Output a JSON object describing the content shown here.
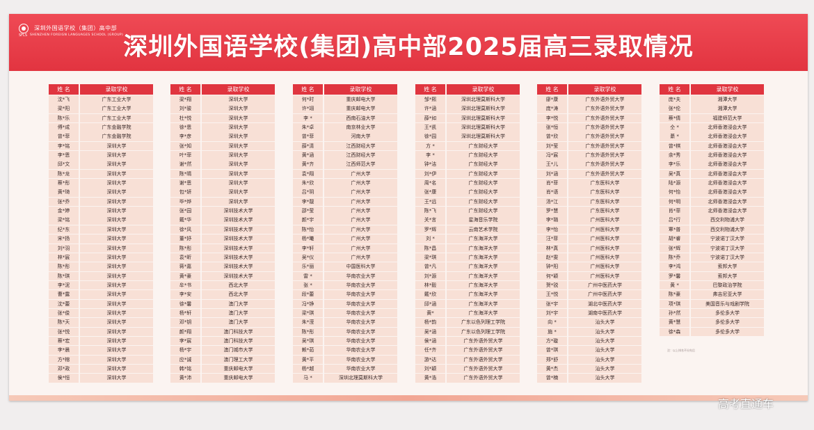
{
  "header": {
    "logo_text": "深圳外国语学校（集团）高中部",
    "logo_short": "SFLS",
    "logo_en": "SHENZHEN FOREIGN LANGUAGES SCHOOL (GROUP)",
    "title": "深圳外国语学校(集团)高中部2025届高三录取情况"
  },
  "columns": [
    {
      "header_name": "姓 名",
      "header_school": "录取学校",
      "rows": [
        {
          "name": "沈*飞",
          "school": "广东工业大学"
        },
        {
          "name": "梁*阳",
          "school": "广东工业大学"
        },
        {
          "name": "陈*乐",
          "school": "广东工业大学"
        },
        {
          "name": "傅*成",
          "school": "广东金融学院"
        },
        {
          "name": "曾*菲",
          "school": "广东金融学院"
        },
        {
          "name": "李*铭",
          "school": "深圳大学"
        },
        {
          "name": "李*恩",
          "school": "深圳大学"
        },
        {
          "name": "邱*文",
          "school": "深圳大学"
        },
        {
          "name": "陈*龙",
          "school": "深圳大学"
        },
        {
          "name": "蔡*彤",
          "school": "深圳大学"
        },
        {
          "name": "黄*琦",
          "school": "深圳大学"
        },
        {
          "name": "张*乔",
          "school": "深圳大学"
        },
        {
          "name": "金*婷",
          "school": "深圳大学"
        },
        {
          "name": "梁*铭",
          "school": "深圳大学"
        },
        {
          "name": "纪*东",
          "school": "深圳大学"
        },
        {
          "name": "宋*扬",
          "school": "深圳大学"
        },
        {
          "name": "刘*羽",
          "school": "深圳大学"
        },
        {
          "name": "林*宸",
          "school": "深圳大学"
        },
        {
          "name": "陈*彤",
          "school": "深圳大学"
        },
        {
          "name": "陈*琪",
          "school": "深圳大学"
        },
        {
          "name": "李*泥",
          "school": "深圳大学"
        },
        {
          "name": "曹*露",
          "school": "深圳大学"
        },
        {
          "name": "沈*蕾",
          "school": "深圳大学"
        },
        {
          "name": "张*俊",
          "school": "深圳大学"
        },
        {
          "name": "陈*天",
          "school": "深圳大学"
        },
        {
          "name": "张*悦",
          "school": "深圳大学"
        },
        {
          "name": "蔡*宏",
          "school": "深圳大学"
        },
        {
          "name": "李*晨",
          "school": "深圳大学"
        },
        {
          "name": "方*榕",
          "school": "深圳大学"
        },
        {
          "name": "邓*政",
          "school": "深圳大学"
        },
        {
          "name": "侯*恒",
          "school": "深圳大学"
        }
      ]
    },
    {
      "header_name": "姓 名",
      "header_school": "录取学校",
      "rows": [
        {
          "name": "梁*翔",
          "school": "深圳大学"
        },
        {
          "name": "刘*骏",
          "school": "深圳大学"
        },
        {
          "name": "杜*悦",
          "school": "深圳大学"
        },
        {
          "name": "徐*恩",
          "school": "深圳大学"
        },
        {
          "name": "李*彦",
          "school": "深圳大学"
        },
        {
          "name": "张*知",
          "school": "深圳大学"
        },
        {
          "name": "叶*菲",
          "school": "深圳大学"
        },
        {
          "name": "谢*然",
          "school": "深圳大学"
        },
        {
          "name": "陈*晴",
          "school": "深圳大学"
        },
        {
          "name": "谢*恩",
          "school": "深圳大学"
        },
        {
          "name": "包*妍",
          "school": "深圳大学"
        },
        {
          "name": "毕*烨",
          "school": "深圳大学"
        },
        {
          "name": "张*园",
          "school": "深圳技术大学"
        },
        {
          "name": "戴*华",
          "school": "深圳技术大学"
        },
        {
          "name": "徐*风",
          "school": "深圳技术大学"
        },
        {
          "name": "董*妤",
          "school": "深圳技术大学"
        },
        {
          "name": "陈*彤",
          "school": "深圳技术大学"
        },
        {
          "name": "袁*昕",
          "school": "深圳技术大学"
        },
        {
          "name": "蒋*嘉",
          "school": "深圳技术大学"
        },
        {
          "name": "黄*豪",
          "school": "深圳技术大学"
        },
        {
          "name": "牟*书",
          "school": "西北大学"
        },
        {
          "name": "李*安",
          "school": "西北大学"
        },
        {
          "name": "徐*馨",
          "school": "澳门大学"
        },
        {
          "name": "杨*轩",
          "school": "澳门大学"
        },
        {
          "name": "邓*钥",
          "school": "澳门大学"
        },
        {
          "name": "颜*翔",
          "school": "澳门科技大学"
        },
        {
          "name": "李*宸",
          "school": "澳门科技大学"
        },
        {
          "name": "杨*宇",
          "school": "澳门城市大学"
        },
        {
          "name": "应*诚",
          "school": "澳门理工大学"
        },
        {
          "name": "韩*铭",
          "school": "重庆邮电大学"
        },
        {
          "name": "黄*沛",
          "school": "重庆邮电大学"
        }
      ]
    },
    {
      "header_name": "姓 名",
      "header_school": "录取学校",
      "rows": [
        {
          "name": "何*时",
          "school": "重庆邮电大学"
        },
        {
          "name": "许*翊",
          "school": "重庆邮电大学"
        },
        {
          "name": "李 *",
          "school": "西南石油大学"
        },
        {
          "name": "朱*卓",
          "school": "南京林业大学"
        },
        {
          "name": "曾*菲",
          "school": "河南大学"
        },
        {
          "name": "薛*清",
          "school": "江西财经大学"
        },
        {
          "name": "黄*涵",
          "school": "江西财经大学"
        },
        {
          "name": "黄*齐",
          "school": "江西师范大学"
        },
        {
          "name": "袁*翔",
          "school": "广州大学"
        },
        {
          "name": "朱*欣",
          "school": "广州大学"
        },
        {
          "name": "吕*玥",
          "school": "广州大学"
        },
        {
          "name": "李*靓",
          "school": "广州大学"
        },
        {
          "name": "邵*莹",
          "school": "广州大学"
        },
        {
          "name": "颜*宇",
          "school": "广州大学"
        },
        {
          "name": "陈*怡",
          "school": "广州大学"
        },
        {
          "name": "杨*曦",
          "school": "广州大学"
        },
        {
          "name": "李*轩",
          "school": "广州大学"
        },
        {
          "name": "吴*仪",
          "school": "广州大学"
        },
        {
          "name": "乐*丽",
          "school": "中国医科大学"
        },
        {
          "name": "雷 *",
          "school": "华南农业大学"
        },
        {
          "name": "张 *",
          "school": "华南农业大学"
        },
        {
          "name": "段*蕾",
          "school": "华南农业大学"
        },
        {
          "name": "冯*铮",
          "school": "华南农业大学"
        },
        {
          "name": "梁*琪",
          "school": "华南农业大学"
        },
        {
          "name": "朱*滢",
          "school": "华南农业大学"
        },
        {
          "name": "陈*彤",
          "school": "华南农业大学"
        },
        {
          "name": "吴*琪",
          "school": "华南农业大学"
        },
        {
          "name": "赖*茹",
          "school": "华南农业大学"
        },
        {
          "name": "黄*平",
          "school": "华南农业大学"
        },
        {
          "name": "杨*越",
          "school": "华南农业大学"
        },
        {
          "name": "马 *",
          "school": "深圳北理莫斯科大学"
        }
      ]
    },
    {
      "header_name": "姓 名",
      "header_school": "录取学校",
      "rows": [
        {
          "name": "邹*熙",
          "school": "深圳北理莫斯科大学"
        },
        {
          "name": "许*涵",
          "school": "深圳北理莫斯科大学"
        },
        {
          "name": "薛*如",
          "school": "深圳北理莫斯科大学"
        },
        {
          "name": "王*凯",
          "school": "深圳北理莫斯科大学"
        },
        {
          "name": "徐*园",
          "school": "深圳北理莫斯科大学"
        },
        {
          "name": "方 *",
          "school": "广东财经大学"
        },
        {
          "name": "李 *",
          "school": "广东财经大学"
        },
        {
          "name": "钟*洁",
          "school": "广东财经大学"
        },
        {
          "name": "刘*伊",
          "school": "广东财经大学"
        },
        {
          "name": "周*名",
          "school": "广东财经大学"
        },
        {
          "name": "张*康",
          "school": "广东财经大学"
        },
        {
          "name": "王*远",
          "school": "广东财经大学"
        },
        {
          "name": "陈*飞",
          "school": "广东财经大学"
        },
        {
          "name": "关*言",
          "school": "星海音乐学院"
        },
        {
          "name": "罗*辉",
          "school": "云南艺术学院"
        },
        {
          "name": "刘 *",
          "school": "广东海洋大学"
        },
        {
          "name": "陈*昌",
          "school": "广东海洋大学"
        },
        {
          "name": "梁*琪",
          "school": "广东海洋大学"
        },
        {
          "name": "曾*凡",
          "school": "广东海洋大学"
        },
        {
          "name": "刘*源",
          "school": "广东海洋大学"
        },
        {
          "name": "林*毅",
          "school": "广东海洋大学"
        },
        {
          "name": "戴*欣",
          "school": "广东海洋大学"
        },
        {
          "name": "邱*涵",
          "school": "广东海洋大学"
        },
        {
          "name": "黄*",
          "school": "广东海洋大学"
        },
        {
          "name": "杨*韵",
          "school": "广东以色列理工学院"
        },
        {
          "name": "吴*涵",
          "school": "广东以色列理工学院"
        },
        {
          "name": "侯*涵",
          "school": "广东外语外贸大学"
        },
        {
          "name": "任*齐",
          "school": "广东外语外贸大学"
        },
        {
          "name": "游*达",
          "school": "广东外语外贸大学"
        },
        {
          "name": "刘*颖",
          "school": "广东外语外贸大学"
        },
        {
          "name": "黄*浩",
          "school": "广东外语外贸大学"
        }
      ]
    },
    {
      "header_name": "姓 名",
      "header_school": "录取学校",
      "rows": [
        {
          "name": "廖*康",
          "school": "广东外语外贸大学"
        },
        {
          "name": "庞*涛",
          "school": "广东外语外贸大学"
        },
        {
          "name": "李*悦",
          "school": "广东外语外贸大学"
        },
        {
          "name": "张*恒",
          "school": "广东外语外贸大学"
        },
        {
          "name": "曾*欣",
          "school": "广东外语外贸大学"
        },
        {
          "name": "刘*莹",
          "school": "广东外语外贸大学"
        },
        {
          "name": "冯*宸",
          "school": "广东外语外贸大学"
        },
        {
          "name": "王*儿",
          "school": "广东外语外贸大学"
        },
        {
          "name": "刘*涵",
          "school": "广东外语外贸大学"
        },
        {
          "name": "肖*菲",
          "school": "广东医科大学"
        },
        {
          "name": "肖*语",
          "school": "广东医科大学"
        },
        {
          "name": "汤*江",
          "school": "广东医科大学"
        },
        {
          "name": "罗*慧",
          "school": "广东医科大学"
        },
        {
          "name": "李*璐",
          "school": "广州医科大学"
        },
        {
          "name": "李*怡",
          "school": "广州医科大学"
        },
        {
          "name": "汪*菲",
          "school": "广州医科大学"
        },
        {
          "name": "林*真",
          "school": "广州医科大学"
        },
        {
          "name": "赵*雯",
          "school": "广州医科大学"
        },
        {
          "name": "钟*阳",
          "school": "广州医科大学"
        },
        {
          "name": "何*颖",
          "school": "广州医科大学"
        },
        {
          "name": "贺*锐",
          "school": "广州中医药大学"
        },
        {
          "name": "王*悦",
          "school": "广州中医药大学"
        },
        {
          "name": "张*宇",
          "school": "湖北中医药大学"
        },
        {
          "name": "刘*宇",
          "school": "湖南中医药大学"
        },
        {
          "name": "向 *",
          "school": "汕头大学"
        },
        {
          "name": "施 *",
          "school": "汕头大学"
        },
        {
          "name": "方*璇",
          "school": "汕头大学"
        },
        {
          "name": "曾*琪",
          "school": "汕头大学"
        },
        {
          "name": "郑*舒",
          "school": "汕头大学"
        },
        {
          "name": "黄*杰",
          "school": "汕头大学"
        },
        {
          "name": "曾*楠",
          "school": "汕头大学"
        }
      ]
    },
    {
      "header_name": "姓 名",
      "header_school": "录取学校",
      "rows": [
        {
          "name": "庞*夫",
          "school": "湘潭大学"
        },
        {
          "name": "张*伦",
          "school": "湘潭大学"
        },
        {
          "name": "蔡*倩",
          "school": "福建师范大学"
        },
        {
          "name": "仝 *",
          "school": "北师香港浸会大学"
        },
        {
          "name": "綦 *",
          "school": "北师香港浸会大学"
        },
        {
          "name": "曾*棋",
          "school": "北师香港浸会大学"
        },
        {
          "name": "余*秀",
          "school": "北师香港浸会大学"
        },
        {
          "name": "李*乐",
          "school": "北师香港浸会大学"
        },
        {
          "name": "吴*真",
          "school": "北师香港浸会大学"
        },
        {
          "name": "陆*源",
          "school": "北师香港浸会大学"
        },
        {
          "name": "何*怡",
          "school": "北师香港浸会大学"
        },
        {
          "name": "何*明",
          "school": "北师香港浸会大学"
        },
        {
          "name": "肖*菲",
          "school": "北师香港浸会大学"
        },
        {
          "name": "吕*行",
          "school": "西交利物浦大学"
        },
        {
          "name": "覃*普",
          "school": "西交利物浦大学"
        },
        {
          "name": "胡*睿",
          "school": "宁波诺丁汉大学"
        },
        {
          "name": "张*辉",
          "school": "宁波诺丁汉大学"
        },
        {
          "name": "陈*乔",
          "school": "宁波诺丁汉大学"
        },
        {
          "name": "李*鸿",
          "school": "索邦大学"
        },
        {
          "name": "罗*馨",
          "school": "索邦大学"
        },
        {
          "name": "黄 *",
          "school": "巴黎政治学院"
        },
        {
          "name": "陈*豪",
          "school": "弗吉尼亚大学"
        },
        {
          "name": "项*琪",
          "school": "美国音乐与戏剧学院"
        },
        {
          "name": "孙*然",
          "school": "多伦多大学"
        },
        {
          "name": "黄*慧",
          "school": "多伦多大学"
        },
        {
          "name": "徐*森",
          "school": "多伦多大学"
        }
      ]
    }
  ],
  "note": "注：以上排名不分先后",
  "watermark": "高考直通车"
}
